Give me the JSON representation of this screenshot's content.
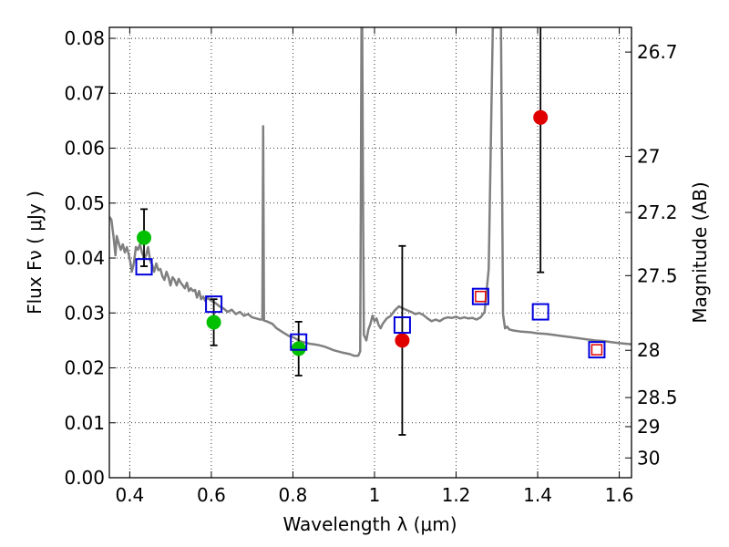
{
  "chart_data": {
    "type": "scatter",
    "xlabel": "Wavelength  λ (μm)",
    "ylabel_left": "Flux  Fν  ( μJy )",
    "ylabel_right": "Magnitude (AB)",
    "xlim": [
      0.35,
      1.63
    ],
    "ylim": [
      0.0,
      0.082
    ],
    "grid": true,
    "x_ticks": [
      0.4,
      0.6,
      0.8,
      1.0,
      1.2,
      1.4,
      1.6
    ],
    "x_tick_labels": [
      "0.4",
      "0.6",
      "0.8",
      "1",
      "1.2",
      "1.4",
      "1.6"
    ],
    "y_ticks": [
      0.0,
      0.01,
      0.02,
      0.03,
      0.04,
      0.05,
      0.06,
      0.07,
      0.08
    ],
    "y_tick_labels": [
      "0.00",
      "0.01",
      "0.02",
      "0.03",
      "0.04",
      "0.05",
      "0.06",
      "0.07",
      "0.08"
    ],
    "mag_ticks": [
      {
        "label": "26.7",
        "flux": 0.0775
      },
      {
        "label": "27",
        "flux": 0.0585
      },
      {
        "label": "27.2",
        "flux": 0.0483
      },
      {
        "label": "27.5",
        "flux": 0.0368
      },
      {
        "label": "28",
        "flux": 0.0232
      },
      {
        "label": "28.5",
        "flux": 0.0146
      },
      {
        "label": "29",
        "flux": 0.0093
      },
      {
        "label": "30",
        "flux": 0.0036
      }
    ],
    "model_spectrum": {
      "color": "#808080",
      "points": [
        [
          0.35,
          0.0475
        ],
        [
          0.355,
          0.047
        ],
        [
          0.36,
          0.044
        ],
        [
          0.365,
          0.0405
        ],
        [
          0.368,
          0.044
        ],
        [
          0.372,
          0.043
        ],
        [
          0.378,
          0.0415
        ],
        [
          0.383,
          0.0425
        ],
        [
          0.388,
          0.041
        ],
        [
          0.393,
          0.042
        ],
        [
          0.398,
          0.0405
        ],
        [
          0.402,
          0.039
        ],
        [
          0.405,
          0.0375
        ],
        [
          0.41,
          0.039
        ],
        [
          0.415,
          0.042
        ],
        [
          0.42,
          0.0415
        ],
        [
          0.425,
          0.0425
        ],
        [
          0.43,
          0.041
        ],
        [
          0.435,
          0.04
        ],
        [
          0.44,
          0.0405
        ],
        [
          0.445,
          0.042
        ],
        [
          0.45,
          0.0395
        ],
        [
          0.455,
          0.0388
        ],
        [
          0.46,
          0.0375
        ],
        [
          0.465,
          0.039
        ],
        [
          0.47,
          0.0378
        ],
        [
          0.475,
          0.038
        ],
        [
          0.48,
          0.0367
        ],
        [
          0.485,
          0.036
        ],
        [
          0.49,
          0.0375
        ],
        [
          0.495,
          0.0365
        ],
        [
          0.5,
          0.035
        ],
        [
          0.505,
          0.0365
        ],
        [
          0.51,
          0.036
        ],
        [
          0.515,
          0.035
        ],
        [
          0.52,
          0.0362
        ],
        [
          0.525,
          0.0355
        ],
        [
          0.53,
          0.035
        ],
        [
          0.535,
          0.0345
        ],
        [
          0.54,
          0.0355
        ],
        [
          0.545,
          0.034
        ],
        [
          0.55,
          0.0345
        ],
        [
          0.555,
          0.034
        ],
        [
          0.56,
          0.0342
        ],
        [
          0.565,
          0.0328
        ],
        [
          0.57,
          0.034
        ],
        [
          0.575,
          0.0325
        ],
        [
          0.58,
          0.033
        ],
        [
          0.585,
          0.0322
        ],
        [
          0.59,
          0.0328
        ],
        [
          0.6,
          0.0322
        ],
        [
          0.61,
          0.0318
        ],
        [
          0.62,
          0.0312
        ],
        [
          0.63,
          0.0308
        ],
        [
          0.64,
          0.0302
        ],
        [
          0.65,
          0.0306
        ],
        [
          0.66,
          0.0298
        ],
        [
          0.67,
          0.0302
        ],
        [
          0.68,
          0.0295
        ],
        [
          0.69,
          0.0298
        ],
        [
          0.7,
          0.0292
        ],
        [
          0.71,
          0.029
        ],
        [
          0.72,
          0.0288
        ],
        [
          0.725,
          0.0288
        ],
        [
          0.727,
          0.064
        ],
        [
          0.729,
          0.0286
        ],
        [
          0.735,
          0.0285
        ],
        [
          0.75,
          0.028
        ],
        [
          0.76,
          0.0272
        ],
        [
          0.775,
          0.0265
        ],
        [
          0.79,
          0.0258
        ],
        [
          0.8,
          0.0256
        ],
        [
          0.82,
          0.0248
        ],
        [
          0.84,
          0.0244
        ],
        [
          0.86,
          0.0242
        ],
        [
          0.88,
          0.0238
        ],
        [
          0.9,
          0.0232
        ],
        [
          0.92,
          0.0228
        ],
        [
          0.94,
          0.0225
        ],
        [
          0.95,
          0.0222
        ],
        [
          0.96,
          0.0222
        ],
        [
          0.965,
          0.023
        ],
        [
          0.968,
          0.082
        ],
        [
          0.97,
          0.082
        ],
        [
          0.972,
          0.05
        ],
        [
          0.974,
          0.026
        ],
        [
          0.98,
          0.025
        ],
        [
          0.985,
          0.027
        ],
        [
          0.99,
          0.028
        ],
        [
          0.995,
          0.0295
        ],
        [
          1.0,
          0.0285
        ],
        [
          1.005,
          0.029
        ],
        [
          1.01,
          0.0278
        ],
        [
          1.015,
          0.0272
        ],
        [
          1.02,
          0.028
        ],
        [
          1.03,
          0.029
        ],
        [
          1.04,
          0.0295
        ],
        [
          1.05,
          0.0305
        ],
        [
          1.06,
          0.0312
        ],
        [
          1.07,
          0.0308
        ],
        [
          1.08,
          0.0305
        ],
        [
          1.09,
          0.0302
        ],
        [
          1.1,
          0.0298
        ],
        [
          1.11,
          0.03
        ],
        [
          1.12,
          0.0296
        ],
        [
          1.13,
          0.029
        ],
        [
          1.14,
          0.0285
        ],
        [
          1.15,
          0.0288
        ],
        [
          1.16,
          0.0285
        ],
        [
          1.17,
          0.029
        ],
        [
          1.18,
          0.0292
        ],
        [
          1.19,
          0.0291
        ],
        [
          1.2,
          0.0293
        ],
        [
          1.21,
          0.029
        ],
        [
          1.22,
          0.0292
        ],
        [
          1.23,
          0.029
        ],
        [
          1.24,
          0.0291
        ],
        [
          1.25,
          0.0288
        ],
        [
          1.26,
          0.0292
        ],
        [
          1.27,
          0.0302
        ],
        [
          1.28,
          0.038
        ],
        [
          1.29,
          0.082
        ],
        [
          1.31,
          0.082
        ],
        [
          1.315,
          0.0298
        ],
        [
          1.32,
          0.0272
        ],
        [
          1.325,
          0.0275
        ],
        [
          1.33,
          0.027
        ],
        [
          1.34,
          0.0268
        ],
        [
          1.36,
          0.0266
        ],
        [
          1.38,
          0.0265
        ],
        [
          1.4,
          0.0263
        ],
        [
          1.42,
          0.0262
        ],
        [
          1.44,
          0.026
        ],
        [
          1.46,
          0.0258
        ],
        [
          1.48,
          0.0256
        ],
        [
          1.5,
          0.0254
        ],
        [
          1.52,
          0.0252
        ],
        [
          1.54,
          0.025
        ],
        [
          1.56,
          0.0249
        ],
        [
          1.58,
          0.0247
        ],
        [
          1.6,
          0.0245
        ],
        [
          1.63,
          0.0243
        ]
      ]
    },
    "series": [
      {
        "kind": "observed-green",
        "color": "#00c000",
        "points": [
          {
            "x": 0.435,
            "y": 0.0437,
            "err": 0.0052
          },
          {
            "x": 0.606,
            "y": 0.0283,
            "err": 0.0042
          },
          {
            "x": 0.814,
            "y": 0.0235,
            "err": 0.0049
          }
        ]
      },
      {
        "kind": "observed-red",
        "color": "#e00000",
        "points": [
          {
            "x": 1.068,
            "y": 0.025,
            "err": 0.0172
          },
          {
            "x": 1.407,
            "y": 0.0656,
            "err": 0.0282
          }
        ]
      },
      {
        "kind": "model-blue-squares",
        "color": "#0000dd",
        "points": [
          {
            "x": 0.435,
            "y": 0.0384
          },
          {
            "x": 0.606,
            "y": 0.0316
          },
          {
            "x": 0.814,
            "y": 0.0247
          },
          {
            "x": 1.068,
            "y": 0.0278
          },
          {
            "x": 1.26,
            "y": 0.033
          },
          {
            "x": 1.407,
            "y": 0.0302
          },
          {
            "x": 1.545,
            "y": 0.0233
          }
        ]
      },
      {
        "kind": "model-red-squares",
        "color": "#e00000",
        "points": [
          {
            "x": 1.26,
            "y": 0.033
          },
          {
            "x": 1.545,
            "y": 0.0233
          }
        ]
      }
    ]
  }
}
